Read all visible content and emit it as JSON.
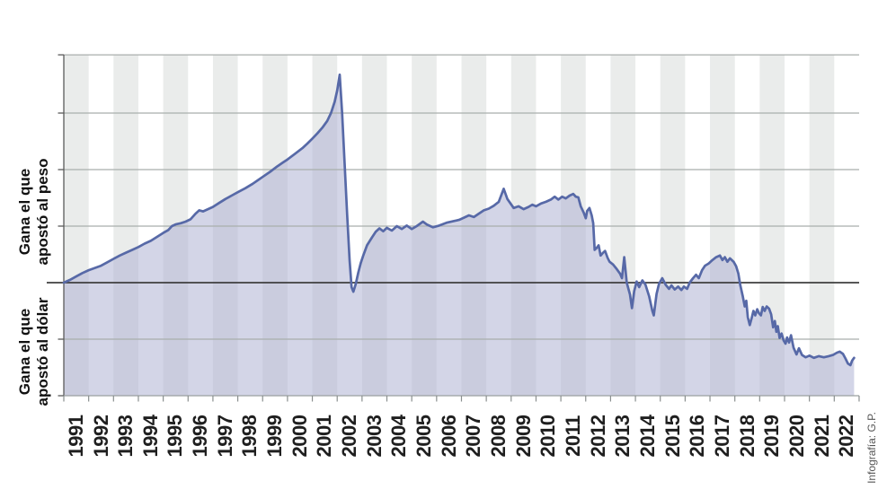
{
  "labels": {
    "peso": {
      "line1": "Gana el que",
      "line2": "apostó al peso"
    },
    "dolar": {
      "line1": "Gana el que",
      "line2": "apostó al dólar"
    },
    "credit": "Infografía: G.P."
  },
  "colors": {
    "line": "#5769a7",
    "fill": "rgba(174,178,211,0.55)",
    "band": "#eaeceb",
    "grid": "#a9aeac",
    "zero_line": "#3f3f3f",
    "axis_left": "#5a5a5a",
    "axis_bottom": "#9aa0a0",
    "tick": "#8a8f8f",
    "year_label": "#1f1f1f"
  },
  "chart_data": {
    "type": "area",
    "title": "",
    "xlabel": "",
    "ylabel": "",
    "categories": [
      "1991",
      "1992",
      "1993",
      "1994",
      "1995",
      "1996",
      "1997",
      "1998",
      "1999",
      "2000",
      "2001",
      "2002",
      "2003",
      "2004",
      "2005",
      "2006",
      "2007",
      "2008",
      "2009",
      "2010",
      "2011",
      "2012",
      "2013",
      "2014",
      "2015",
      "2016",
      "2017",
      "2018",
      "2019",
      "2020",
      "2021",
      "2022"
    ],
    "x_range": [
      1991,
      2023
    ],
    "ylim": [
      -2,
      4.03
    ],
    "zero_line": 0,
    "gridlines_y": [
      4.03,
      3,
      2,
      1,
      -1
    ],
    "left_tick_values": [
      4.03,
      3,
      2,
      1,
      -1,
      -2
    ],
    "legend": "none",
    "grid": "on",
    "points": [
      [
        1991.0,
        0.0
      ],
      [
        1991.25,
        0.05
      ],
      [
        1991.5,
        0.11
      ],
      [
        1991.75,
        0.17
      ],
      [
        1992.0,
        0.22
      ],
      [
        1992.25,
        0.26
      ],
      [
        1992.5,
        0.3
      ],
      [
        1992.75,
        0.36
      ],
      [
        1993.0,
        0.42
      ],
      [
        1993.25,
        0.48
      ],
      [
        1993.5,
        0.53
      ],
      [
        1993.75,
        0.58
      ],
      [
        1994.0,
        0.63
      ],
      [
        1994.25,
        0.69
      ],
      [
        1994.5,
        0.74
      ],
      [
        1994.75,
        0.81
      ],
      [
        1995.0,
        0.88
      ],
      [
        1995.2,
        0.93
      ],
      [
        1995.35,
        1.0
      ],
      [
        1995.5,
        1.03
      ],
      [
        1995.7,
        1.05
      ],
      [
        1995.9,
        1.08
      ],
      [
        1996.1,
        1.12
      ],
      [
        1996.3,
        1.22
      ],
      [
        1996.45,
        1.28
      ],
      [
        1996.6,
        1.26
      ],
      [
        1996.8,
        1.3
      ],
      [
        1997.0,
        1.34
      ],
      [
        1997.25,
        1.41
      ],
      [
        1997.5,
        1.48
      ],
      [
        1997.75,
        1.54
      ],
      [
        1998.0,
        1.6
      ],
      [
        1998.3,
        1.67
      ],
      [
        1998.6,
        1.75
      ],
      [
        1998.8,
        1.81
      ],
      [
        1999.0,
        1.87
      ],
      [
        1999.3,
        1.96
      ],
      [
        1999.6,
        2.06
      ],
      [
        1999.8,
        2.12
      ],
      [
        2000.0,
        2.18
      ],
      [
        2000.3,
        2.28
      ],
      [
        2000.6,
        2.38
      ],
      [
        2000.8,
        2.46
      ],
      [
        2001.0,
        2.55
      ],
      [
        2001.2,
        2.64
      ],
      [
        2001.4,
        2.74
      ],
      [
        2001.6,
        2.86
      ],
      [
        2001.75,
        3.0
      ],
      [
        2001.9,
        3.2
      ],
      [
        2002.0,
        3.4
      ],
      [
        2002.1,
        3.68
      ],
      [
        2002.2,
        3.0
      ],
      [
        2002.3,
        2.1
      ],
      [
        2002.4,
        1.2
      ],
      [
        2002.5,
        0.4
      ],
      [
        2002.58,
        -0.08
      ],
      [
        2002.65,
        -0.16
      ],
      [
        2002.75,
        -0.02
      ],
      [
        2002.85,
        0.18
      ],
      [
        2002.95,
        0.35
      ],
      [
        2003.05,
        0.48
      ],
      [
        2003.2,
        0.66
      ],
      [
        2003.4,
        0.8
      ],
      [
        2003.55,
        0.9
      ],
      [
        2003.7,
        0.96
      ],
      [
        2003.85,
        0.91
      ],
      [
        2004.0,
        0.97
      ],
      [
        2004.2,
        0.92
      ],
      [
        2004.4,
        1.0
      ],
      [
        2004.6,
        0.95
      ],
      [
        2004.8,
        1.01
      ],
      [
        2005.0,
        0.95
      ],
      [
        2005.2,
        1.0
      ],
      [
        2005.45,
        1.08
      ],
      [
        2005.6,
        1.03
      ],
      [
        2005.85,
        0.98
      ],
      [
        2006.1,
        1.01
      ],
      [
        2006.4,
        1.06
      ],
      [
        2006.7,
        1.09
      ],
      [
        2006.9,
        1.11
      ],
      [
        2007.1,
        1.15
      ],
      [
        2007.3,
        1.19
      ],
      [
        2007.5,
        1.16
      ],
      [
        2007.7,
        1.22
      ],
      [
        2007.9,
        1.28
      ],
      [
        2008.1,
        1.31
      ],
      [
        2008.3,
        1.36
      ],
      [
        2008.5,
        1.43
      ],
      [
        2008.7,
        1.66
      ],
      [
        2008.85,
        1.48
      ],
      [
        2009.1,
        1.32
      ],
      [
        2009.3,
        1.35
      ],
      [
        2009.5,
        1.3
      ],
      [
        2009.7,
        1.34
      ],
      [
        2009.85,
        1.38
      ],
      [
        2010.0,
        1.35
      ],
      [
        2010.2,
        1.4
      ],
      [
        2010.4,
        1.43
      ],
      [
        2010.6,
        1.47
      ],
      [
        2010.75,
        1.52
      ],
      [
        2010.9,
        1.47
      ],
      [
        2011.05,
        1.52
      ],
      [
        2011.2,
        1.49
      ],
      [
        2011.35,
        1.54
      ],
      [
        2011.5,
        1.57
      ],
      [
        2011.6,
        1.52
      ],
      [
        2011.7,
        1.51
      ],
      [
        2011.8,
        1.35
      ],
      [
        2011.92,
        1.24
      ],
      [
        2012.0,
        1.14
      ],
      [
        2012.06,
        1.27
      ],
      [
        2012.15,
        1.32
      ],
      [
        2012.24,
        1.19
      ],
      [
        2012.3,
        1.05
      ],
      [
        2012.36,
        0.58
      ],
      [
        2012.45,
        0.62
      ],
      [
        2012.52,
        0.66
      ],
      [
        2012.6,
        0.48
      ],
      [
        2012.7,
        0.53
      ],
      [
        2012.78,
        0.56
      ],
      [
        2012.88,
        0.44
      ],
      [
        2012.96,
        0.37
      ],
      [
        2013.1,
        0.32
      ],
      [
        2013.25,
        0.24
      ],
      [
        2013.38,
        0.16
      ],
      [
        2013.46,
        0.08
      ],
      [
        2013.55,
        0.45
      ],
      [
        2013.65,
        0.0
      ],
      [
        2013.78,
        -0.21
      ],
      [
        2013.86,
        -0.45
      ],
      [
        2013.95,
        -0.15
      ],
      [
        2014.05,
        0.02
      ],
      [
        2014.15,
        -0.08
      ],
      [
        2014.28,
        0.04
      ],
      [
        2014.4,
        -0.03
      ],
      [
        2014.55,
        -0.24
      ],
      [
        2014.68,
        -0.5
      ],
      [
        2014.74,
        -0.58
      ],
      [
        2014.85,
        -0.2
      ],
      [
        2014.95,
        -0.02
      ],
      [
        2015.08,
        0.08
      ],
      [
        2015.22,
        -0.04
      ],
      [
        2015.35,
        -0.11
      ],
      [
        2015.45,
        -0.05
      ],
      [
        2015.58,
        -0.12
      ],
      [
        2015.72,
        -0.07
      ],
      [
        2015.85,
        -0.13
      ],
      [
        2015.95,
        -0.07
      ],
      [
        2016.08,
        -0.11
      ],
      [
        2016.18,
        0.0
      ],
      [
        2016.32,
        0.08
      ],
      [
        2016.44,
        0.14
      ],
      [
        2016.55,
        0.08
      ],
      [
        2016.68,
        0.22
      ],
      [
        2016.8,
        0.3
      ],
      [
        2016.95,
        0.34
      ],
      [
        2017.1,
        0.4
      ],
      [
        2017.25,
        0.45
      ],
      [
        2017.4,
        0.48
      ],
      [
        2017.5,
        0.4
      ],
      [
        2017.6,
        0.45
      ],
      [
        2017.7,
        0.37
      ],
      [
        2017.8,
        0.43
      ],
      [
        2017.95,
        0.37
      ],
      [
        2018.05,
        0.29
      ],
      [
        2018.14,
        0.16
      ],
      [
        2018.22,
        -0.05
      ],
      [
        2018.32,
        -0.24
      ],
      [
        2018.4,
        -0.42
      ],
      [
        2018.46,
        -0.32
      ],
      [
        2018.52,
        -0.61
      ],
      [
        2018.6,
        -0.75
      ],
      [
        2018.68,
        -0.62
      ],
      [
        2018.75,
        -0.5
      ],
      [
        2018.82,
        -0.58
      ],
      [
        2018.9,
        -0.47
      ],
      [
        2018.97,
        -0.54
      ],
      [
        2019.05,
        -0.58
      ],
      [
        2019.12,
        -0.43
      ],
      [
        2019.2,
        -0.5
      ],
      [
        2019.28,
        -0.42
      ],
      [
        2019.38,
        -0.46
      ],
      [
        2019.46,
        -0.56
      ],
      [
        2019.54,
        -0.79
      ],
      [
        2019.61,
        -0.68
      ],
      [
        2019.67,
        -0.87
      ],
      [
        2019.73,
        -0.77
      ],
      [
        2019.8,
        -0.98
      ],
      [
        2019.88,
        -0.9
      ],
      [
        2019.96,
        -1.02
      ],
      [
        2020.04,
        -1.08
      ],
      [
        2020.1,
        -0.97
      ],
      [
        2020.18,
        -1.06
      ],
      [
        2020.26,
        -0.93
      ],
      [
        2020.36,
        -1.15
      ],
      [
        2020.48,
        -1.27
      ],
      [
        2020.58,
        -1.16
      ],
      [
        2020.7,
        -1.28
      ],
      [
        2020.85,
        -1.32
      ],
      [
        2021.0,
        -1.29
      ],
      [
        2021.18,
        -1.33
      ],
      [
        2021.38,
        -1.3
      ],
      [
        2021.58,
        -1.32
      ],
      [
        2021.78,
        -1.3
      ],
      [
        2021.95,
        -1.28
      ],
      [
        2022.1,
        -1.24
      ],
      [
        2022.22,
        -1.22
      ],
      [
        2022.35,
        -1.26
      ],
      [
        2022.45,
        -1.34
      ],
      [
        2022.55,
        -1.43
      ],
      [
        2022.65,
        -1.46
      ],
      [
        2022.72,
        -1.38
      ],
      [
        2022.8,
        -1.33
      ]
    ]
  }
}
